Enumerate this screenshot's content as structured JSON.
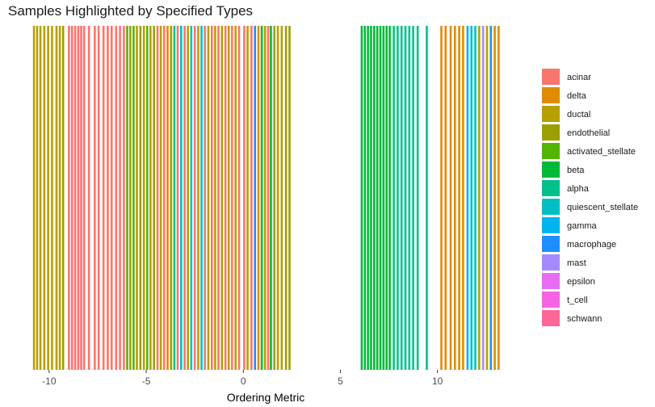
{
  "chart_data": {
    "type": "bar",
    "title": "Samples Highlighted by Specified Types",
    "xlabel": "Ordering Metric",
    "ylabel": "",
    "xlim": [
      -10.95,
      13.3
    ],
    "x_ticks": [
      -10,
      -5,
      0,
      5,
      10
    ],
    "x_tick_labels": [
      "-10",
      "-5",
      "0",
      "5",
      "10"
    ],
    "grid": false,
    "legend_position": "right",
    "legend": [
      {
        "name": "acinar",
        "color": "#F8766D"
      },
      {
        "name": "delta",
        "color": "#DE8C00"
      },
      {
        "name": "ductal",
        "color": "#B79F00"
      },
      {
        "name": "endothelial",
        "color": "#9C9F00"
      },
      {
        "name": "activated_stellate",
        "color": "#53B400"
      },
      {
        "name": "beta",
        "color": "#00BA38"
      },
      {
        "name": "alpha",
        "color": "#00C08B"
      },
      {
        "name": "quiescent_stellate",
        "color": "#00BFC4"
      },
      {
        "name": "gamma",
        "color": "#00B4F0"
      },
      {
        "name": "macrophage",
        "color": "#1F8FFF"
      },
      {
        "name": "mast",
        "color": "#A58AFF"
      },
      {
        "name": "epsilon",
        "color": "#E76BF3"
      },
      {
        "name": "t_cell",
        "color": "#F564E3"
      },
      {
        "name": "schwann",
        "color": "#FF6698"
      }
    ],
    "samples": [
      {
        "x": -10.78,
        "type": "ductal"
      },
      {
        "x": -10.62,
        "type": "ductal"
      },
      {
        "x": -10.45,
        "type": "ductal"
      },
      {
        "x": -10.25,
        "type": "ductal"
      },
      {
        "x": -10.05,
        "type": "ductal"
      },
      {
        "x": -9.85,
        "type": "ductal"
      },
      {
        "x": -9.62,
        "type": "ductal"
      },
      {
        "x": -9.45,
        "type": "ductal"
      },
      {
        "x": -9.28,
        "type": "endothelial"
      },
      {
        "x": -8.98,
        "type": "acinar"
      },
      {
        "x": -8.82,
        "type": "acinar"
      },
      {
        "x": -8.66,
        "type": "acinar"
      },
      {
        "x": -8.5,
        "type": "acinar"
      },
      {
        "x": -8.35,
        "type": "acinar"
      },
      {
        "x": -8.2,
        "type": "acinar"
      },
      {
        "x": -7.95,
        "type": "acinar"
      },
      {
        "x": -7.65,
        "type": "acinar"
      },
      {
        "x": -7.45,
        "type": "acinar"
      },
      {
        "x": -7.2,
        "type": "acinar"
      },
      {
        "x": -6.98,
        "type": "acinar"
      },
      {
        "x": -6.78,
        "type": "acinar"
      },
      {
        "x": -6.55,
        "type": "acinar"
      },
      {
        "x": -6.35,
        "type": "acinar"
      },
      {
        "x": -6.15,
        "type": "acinar"
      },
      {
        "x": -5.98,
        "type": "activated_stellate"
      },
      {
        "x": -5.82,
        "type": "endothelial"
      },
      {
        "x": -5.65,
        "type": "activated_stellate"
      },
      {
        "x": -5.48,
        "type": "ductal"
      },
      {
        "x": -5.3,
        "type": "endothelial"
      },
      {
        "x": -5.12,
        "type": "ductal"
      },
      {
        "x": -4.95,
        "type": "activated_stellate"
      },
      {
        "x": -4.78,
        "type": "ductal"
      },
      {
        "x": -4.6,
        "type": "endothelial"
      },
      {
        "x": -4.42,
        "type": "acinar"
      },
      {
        "x": -4.25,
        "type": "ductal"
      },
      {
        "x": -4.08,
        "type": "acinar"
      },
      {
        "x": -3.9,
        "type": "delta"
      },
      {
        "x": -3.72,
        "type": "endothelial"
      },
      {
        "x": -3.55,
        "type": "alpha"
      },
      {
        "x": -3.38,
        "type": "acinar"
      },
      {
        "x": -3.2,
        "type": "quiescent_stellate"
      },
      {
        "x": -3.02,
        "type": "acinar"
      },
      {
        "x": -2.85,
        "type": "ductal"
      },
      {
        "x": -2.68,
        "type": "quiescent_stellate"
      },
      {
        "x": -2.5,
        "type": "acinar"
      },
      {
        "x": -2.32,
        "type": "ductal"
      },
      {
        "x": -2.15,
        "type": "quiescent_stellate"
      },
      {
        "x": -1.98,
        "type": "acinar"
      },
      {
        "x": -1.8,
        "type": "ductal"
      },
      {
        "x": -1.62,
        "type": "acinar"
      },
      {
        "x": -1.45,
        "type": "ductal"
      },
      {
        "x": -1.28,
        "type": "acinar"
      },
      {
        "x": -1.1,
        "type": "ductal"
      },
      {
        "x": -0.92,
        "type": "acinar"
      },
      {
        "x": -0.75,
        "type": "ductal"
      },
      {
        "x": -0.58,
        "type": "acinar"
      },
      {
        "x": -0.4,
        "type": "ductal"
      },
      {
        "x": -0.22,
        "type": "acinar"
      },
      {
        "x": 0.05,
        "type": "acinar"
      },
      {
        "x": 0.22,
        "type": "ductal"
      },
      {
        "x": 0.42,
        "type": "acinar"
      },
      {
        "x": 0.6,
        "type": "macrophage"
      },
      {
        "x": 0.78,
        "type": "delta"
      },
      {
        "x": 0.95,
        "type": "beta"
      },
      {
        "x": 1.12,
        "type": "ductal"
      },
      {
        "x": 1.28,
        "type": "acinar"
      },
      {
        "x": 1.42,
        "type": "beta"
      },
      {
        "x": 1.6,
        "type": "endothelial"
      },
      {
        "x": 1.78,
        "type": "ductal"
      },
      {
        "x": 1.98,
        "type": "ductal"
      },
      {
        "x": 2.2,
        "type": "endothelial"
      },
      {
        "x": 2.38,
        "type": "endothelial"
      },
      {
        "x": 6.1,
        "type": "beta"
      },
      {
        "x": 6.26,
        "type": "beta"
      },
      {
        "x": 6.42,
        "type": "beta"
      },
      {
        "x": 6.58,
        "type": "beta"
      },
      {
        "x": 6.74,
        "type": "beta"
      },
      {
        "x": 6.9,
        "type": "beta"
      },
      {
        "x": 7.06,
        "type": "beta"
      },
      {
        "x": 7.22,
        "type": "beta"
      },
      {
        "x": 7.38,
        "type": "beta"
      },
      {
        "x": 7.54,
        "type": "beta"
      },
      {
        "x": 7.75,
        "type": "alpha"
      },
      {
        "x": 7.95,
        "type": "alpha"
      },
      {
        "x": 8.15,
        "type": "alpha"
      },
      {
        "x": 8.35,
        "type": "alpha"
      },
      {
        "x": 8.55,
        "type": "alpha"
      },
      {
        "x": 8.75,
        "type": "alpha"
      },
      {
        "x": 8.98,
        "type": "alpha"
      },
      {
        "x": 9.45,
        "type": "alpha"
      },
      {
        "x": 10.2,
        "type": "delta"
      },
      {
        "x": 10.42,
        "type": "delta"
      },
      {
        "x": 10.68,
        "type": "delta"
      },
      {
        "x": 10.9,
        "type": "delta"
      },
      {
        "x": 11.12,
        "type": "delta"
      },
      {
        "x": 11.32,
        "type": "delta"
      },
      {
        "x": 11.55,
        "type": "gamma"
      },
      {
        "x": 11.75,
        "type": "quiescent_stellate"
      },
      {
        "x": 11.95,
        "type": "quiescent_stellate"
      },
      {
        "x": 12.15,
        "type": "ductal"
      },
      {
        "x": 12.35,
        "type": "mast"
      },
      {
        "x": 12.55,
        "type": "ductal"
      },
      {
        "x": 12.75,
        "type": "macrophage"
      },
      {
        "x": 12.95,
        "type": "delta"
      },
      {
        "x": 13.15,
        "type": "delta"
      }
    ]
  }
}
